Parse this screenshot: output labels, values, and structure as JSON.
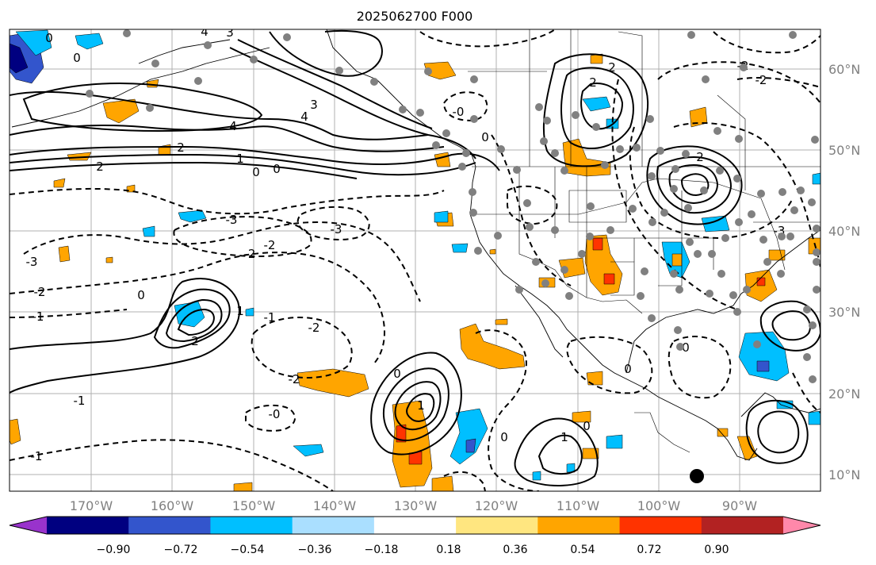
{
  "title": "2025062700 F000",
  "lon_labels": [
    "170°W",
    "160°W",
    "150°W",
    "140°W",
    "130°W",
    "120°W",
    "110°W",
    "100°W",
    "90°W"
  ],
  "lat_labels": [
    "60°N",
    "50°N",
    "40°N",
    "30°N",
    "20°N",
    "10°N"
  ],
  "colorbar": {
    "colors": [
      "#9933cc",
      "#000080",
      "#3355cc",
      "#00bfff",
      "#aadfff",
      "#ffffff",
      "#ffe680",
      "#ffa500",
      "#ff3300",
      "#b22222",
      "#ff88aa"
    ],
    "tick_labels": [
      "−0.90",
      "−0.72",
      "−0.54",
      "−0.36",
      "−0.18",
      "0.18",
      "0.36",
      "0.54",
      "0.72",
      "0.90"
    ]
  },
  "contour_labels": [
    {
      "text": "0",
      "id": "c1"
    },
    {
      "text": "0",
      "id": "c2"
    },
    {
      "text": "4",
      "id": "c3"
    },
    {
      "text": "3",
      "id": "c4"
    },
    {
      "text": "3",
      "id": "c5"
    },
    {
      "text": "4",
      "id": "c6"
    },
    {
      "text": "4",
      "id": "c7"
    },
    {
      "text": "2",
      "id": "c8"
    },
    {
      "text": "2",
      "id": "c9"
    },
    {
      "text": "1",
      "id": "c10"
    },
    {
      "text": "0",
      "id": "c11"
    },
    {
      "text": "0",
      "id": "c12"
    },
    {
      "text": "2",
      "id": "c13"
    },
    {
      "text": "2",
      "id": "c14"
    },
    {
      "text": "-3",
      "id": "c15"
    },
    {
      "text": "-3",
      "id": "c16"
    },
    {
      "text": "-3",
      "id": "c17"
    },
    {
      "text": "-2",
      "id": "c18"
    },
    {
      "text": "-2",
      "id": "c19"
    },
    {
      "text": "-2",
      "id": "c20"
    },
    {
      "text": "-1",
      "id": "c21"
    },
    {
      "text": "0",
      "id": "c22"
    },
    {
      "text": "2",
      "id": "c23"
    },
    {
      "text": "-1",
      "id": "c24"
    },
    {
      "text": "-2",
      "id": "c25"
    },
    {
      "text": "-2",
      "id": "c26"
    },
    {
      "text": "-0",
      "id": "c27"
    },
    {
      "text": "-1",
      "id": "c28"
    },
    {
      "text": "1",
      "id": "c29"
    },
    {
      "text": "-1",
      "id": "c30"
    },
    {
      "text": "0",
      "id": "c31"
    },
    {
      "text": "1",
      "id": "c32"
    },
    {
      "text": "0",
      "id": "c33"
    },
    {
      "text": "0",
      "id": "c34"
    },
    {
      "text": "1",
      "id": "c35"
    },
    {
      "text": "0",
      "id": "c36"
    },
    {
      "text": "0",
      "id": "c37"
    },
    {
      "text": "-2",
      "id": "c38"
    },
    {
      "text": "-2",
      "id": "c39"
    },
    {
      "text": "-3",
      "id": "c40"
    },
    {
      "text": "2",
      "id": "c41"
    },
    {
      "text": "0",
      "id": "c42"
    },
    {
      "text": "-0",
      "id": "c43"
    }
  ]
}
